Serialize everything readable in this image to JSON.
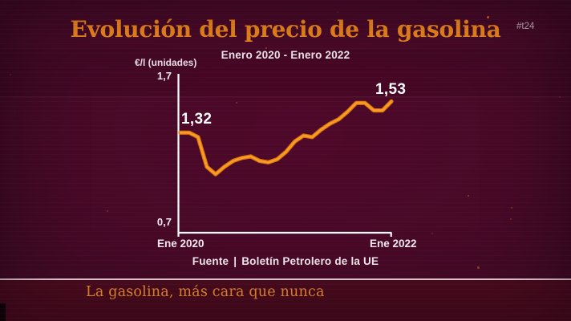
{
  "header": {
    "title": "Evolución del precio de la gasolina",
    "subtitle": "Enero 2020 - Enero 2022",
    "hashtag": "#t24"
  },
  "chart": {
    "y_axis_label": "€/l (unidades)",
    "y_tick_top": "1,7",
    "y_tick_bottom": "0,7",
    "x_tick_start": "Ene 2020",
    "x_tick_end": "Ene 2022",
    "start_label": "1,32",
    "end_label": "1,53"
  },
  "chart_data": {
    "type": "line",
    "title": "Evolución del precio de la gasolina",
    "subtitle": "Enero 2020 - Enero 2022",
    "ylabel": "€/l (unidades)",
    "ylim": [
      0.7,
      1.7
    ],
    "y_ticks": [
      0.7,
      1.7
    ],
    "x_interval": "monthly",
    "x_start": "Ene 2020",
    "x_end": "Ene 2022",
    "x_ticks_shown": [
      "Ene 2020",
      "Ene 2022"
    ],
    "values": [
      1.32,
      1.32,
      1.29,
      1.09,
      1.04,
      1.09,
      1.13,
      1.15,
      1.16,
      1.13,
      1.12,
      1.14,
      1.19,
      1.26,
      1.3,
      1.29,
      1.34,
      1.38,
      1.41,
      1.46,
      1.52,
      1.52,
      1.47,
      1.47,
      1.53
    ],
    "annotations": [
      {
        "index": 0,
        "label": "1,32"
      },
      {
        "index": 24,
        "label": "1,53"
      }
    ],
    "grid": false,
    "legend": false,
    "line_color": "#f08c1b",
    "axis_color": "#ffffff"
  },
  "source": {
    "prefix": "Fuente",
    "separator": "|",
    "text": "Boletín Petrolero de la UE"
  },
  "ticker": {
    "headline": "La gasolina, más cara que nunca"
  },
  "colors": {
    "background": "#470927",
    "banner_background": "#4a0b1e",
    "accent_orange": "#f0891c",
    "text_white": "#f4eaf0",
    "divider": "#e6ccd8"
  }
}
